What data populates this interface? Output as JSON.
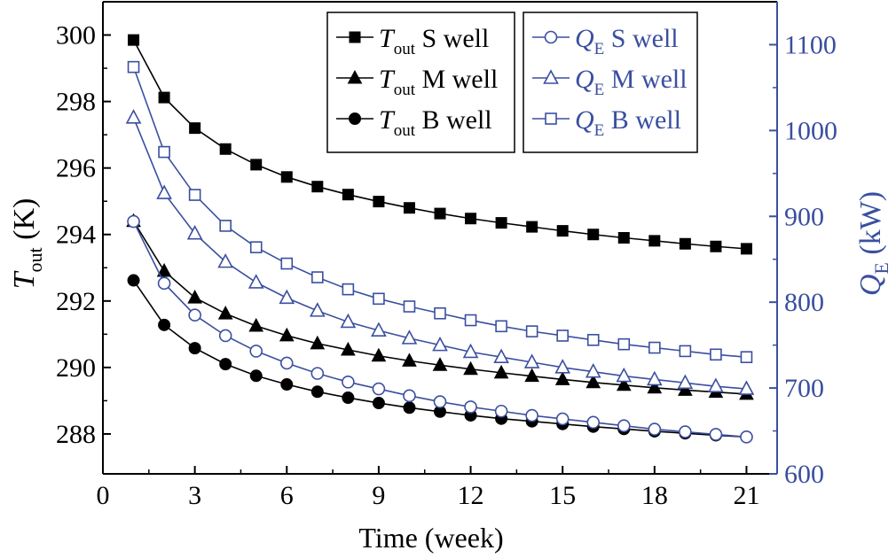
{
  "chart_data": {
    "type": "line",
    "xlabel": "Time (week)",
    "y_left_label": {
      "main": "T",
      "sub": "out",
      "unit": " (K)"
    },
    "y_right_label": {
      "main": "Q",
      "sub": "E",
      "unit": " (kW)"
    },
    "xlim": [
      0,
      22
    ],
    "ylim_left": [
      286.8,
      301
    ],
    "ylim_right": [
      600,
      1150
    ],
    "x_ticks": [
      0,
      3,
      6,
      9,
      12,
      15,
      18,
      21
    ],
    "y_left_ticks": [
      288,
      290,
      292,
      294,
      296,
      298,
      300
    ],
    "y_right_ticks": [
      600,
      700,
      800,
      900,
      1000,
      1100
    ],
    "x": [
      1,
      2,
      3,
      4,
      5,
      6,
      7,
      8,
      9,
      10,
      11,
      12,
      13,
      14,
      15,
      16,
      17,
      18,
      19,
      20,
      21
    ],
    "colors": {
      "left": "#000000",
      "right": "#3a4fa0"
    },
    "series": [
      {
        "id": "t-s",
        "axis": "left",
        "marker": "square",
        "filled": true,
        "main": "T",
        "sub": "out",
        "label": "S well",
        "values": [
          299.85,
          298.12,
          297.2,
          296.57,
          296.1,
          295.73,
          295.44,
          295.2,
          294.99,
          294.8,
          294.63,
          294.48,
          294.35,
          294.23,
          294.11,
          294.0,
          293.9,
          293.81,
          293.72,
          293.64,
          293.57
        ]
      },
      {
        "id": "t-m",
        "axis": "left",
        "marker": "triangle",
        "filled": true,
        "main": "T",
        "sub": "out",
        "label": "M well",
        "values": [
          294.4,
          292.9,
          292.1,
          291.62,
          291.25,
          290.96,
          290.72,
          290.53,
          290.35,
          290.2,
          290.07,
          289.95,
          289.84,
          289.74,
          289.64,
          289.55,
          289.47,
          289.39,
          289.32,
          289.26,
          289.2
        ]
      },
      {
        "id": "t-b",
        "axis": "left",
        "marker": "circle",
        "filled": true,
        "main": "T",
        "sub": "out",
        "label": "B well",
        "values": [
          292.62,
          291.28,
          290.58,
          290.1,
          289.75,
          289.49,
          289.27,
          289.09,
          288.93,
          288.79,
          288.67,
          288.56,
          288.46,
          288.38,
          288.3,
          288.22,
          288.15,
          288.08,
          288.02,
          287.96,
          287.91
        ]
      },
      {
        "id": "q-s",
        "axis": "right",
        "marker": "circle",
        "filled": false,
        "main": "Q",
        "sub": "E",
        "label": "S well",
        "values": [
          894,
          822,
          785,
          761,
          743,
          729,
          717,
          707,
          699,
          691,
          684,
          678,
          673,
          668,
          664,
          660,
          656,
          652,
          649,
          646,
          643
        ]
      },
      {
        "id": "q-m",
        "axis": "right",
        "marker": "triangle",
        "filled": false,
        "main": "Q",
        "sub": "E",
        "label": "M well",
        "values": [
          1015,
          927,
          880,
          847,
          823,
          805,
          790,
          777,
          767,
          758,
          750,
          742,
          736,
          730,
          724,
          719,
          714,
          710,
          706,
          702,
          699
        ]
      },
      {
        "id": "q-b",
        "axis": "right",
        "marker": "square",
        "filled": false,
        "main": "Q",
        "sub": "E",
        "label": "B well",
        "values": [
          1074,
          975,
          925,
          889,
          864,
          845,
          829,
          815,
          804,
          795,
          787,
          779,
          772,
          766,
          761,
          756,
          751,
          747,
          743,
          739,
          736
        ]
      }
    ]
  }
}
